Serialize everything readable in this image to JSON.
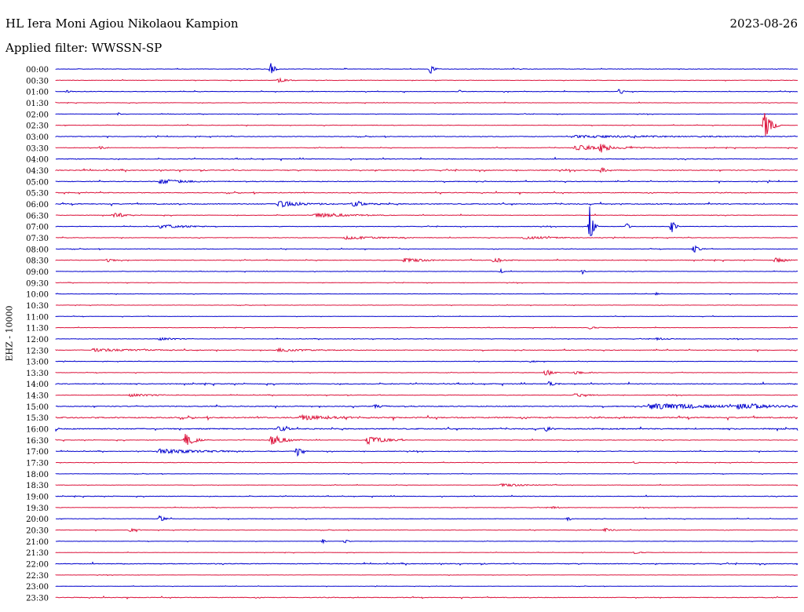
{
  "header": {
    "station": "HL Iera Moni Agiou Nikolaou Kampion",
    "date": "2023-08-26",
    "filter": "Applied filter: WWSSN-SP"
  },
  "colors": {
    "even": "#0000cd",
    "odd": "#dc143c"
  },
  "chart_data": {
    "type": "line",
    "title": "HL Iera Moni Agiou Nikolaou Kampion",
    "ylabel": "EHZ - 10000",
    "grid": false,
    "rows": [
      {
        "label": "00:00",
        "noise": 1,
        "events": [
          {
            "x": 0.29,
            "amp": 9,
            "w": 4
          },
          {
            "x": 0.505,
            "amp": 7,
            "w": 4
          }
        ]
      },
      {
        "label": "00:30",
        "noise": 1,
        "events": [
          {
            "x": 0.3,
            "amp": 3,
            "w": 10
          }
        ]
      },
      {
        "label": "01:00",
        "noise": 1,
        "events": [
          {
            "x": 0.015,
            "amp": 2,
            "w": 3
          },
          {
            "x": 0.545,
            "amp": 2,
            "w": 3
          },
          {
            "x": 0.76,
            "amp": 5,
            "w": 4
          }
        ]
      },
      {
        "label": "01:30",
        "noise": 0.8,
        "events": []
      },
      {
        "label": "02:00",
        "noise": 0.8,
        "events": [
          {
            "x": 0.085,
            "amp": 2,
            "w": 2
          }
        ]
      },
      {
        "label": "02:30",
        "noise": 1,
        "events": [
          {
            "x": 0.955,
            "amp": 20,
            "w": 8
          }
        ]
      },
      {
        "label": "03:00",
        "noise": 1.2,
        "events": [
          {
            "x": 0.7,
            "amp": 1.5,
            "w": 150
          }
        ]
      },
      {
        "label": "03:30",
        "noise": 1.2,
        "events": [
          {
            "x": 0.06,
            "amp": 2,
            "w": 8
          },
          {
            "x": 0.735,
            "amp": 8,
            "w": 6
          },
          {
            "x": 0.7,
            "amp": 3,
            "w": 60
          }
        ]
      },
      {
        "label": "04:00",
        "noise": 1.6,
        "events": []
      },
      {
        "label": "04:30",
        "noise": 1.8,
        "events": [
          {
            "x": 0.735,
            "amp": 5,
            "w": 4
          }
        ]
      },
      {
        "label": "05:00",
        "noise": 1.5,
        "events": [
          {
            "x": 0.14,
            "amp": 3,
            "w": 30
          }
        ]
      },
      {
        "label": "05:30",
        "noise": 1.6,
        "events": []
      },
      {
        "label": "06:00",
        "noise": 2,
        "events": [
          {
            "x": 0.3,
            "amp": 4,
            "w": 30
          },
          {
            "x": 0.4,
            "amp": 3,
            "w": 20
          }
        ]
      },
      {
        "label": "06:30",
        "noise": 1.2,
        "events": [
          {
            "x": 0.08,
            "amp": 4,
            "w": 10
          },
          {
            "x": 0.35,
            "amp": 3,
            "w": 40
          }
        ]
      },
      {
        "label": "07:00",
        "noise": 1,
        "events": [
          {
            "x": 0.72,
            "amp": 30,
            "w": 4
          },
          {
            "x": 0.77,
            "amp": 5,
            "w": 3
          },
          {
            "x": 0.83,
            "amp": 10,
            "w": 4
          },
          {
            "x": 0.14,
            "amp": 3,
            "w": 30
          }
        ]
      },
      {
        "label": "07:30",
        "noise": 1,
        "events": [
          {
            "x": 0.63,
            "amp": 2,
            "w": 40
          },
          {
            "x": 0.39,
            "amp": 2,
            "w": 50
          }
        ]
      },
      {
        "label": "08:00",
        "noise": 1,
        "events": [
          {
            "x": 0.86,
            "amp": 5,
            "w": 6
          }
        ]
      },
      {
        "label": "08:30",
        "noise": 1.4,
        "events": [
          {
            "x": 0.07,
            "amp": 3,
            "w": 6
          },
          {
            "x": 0.59,
            "amp": 4,
            "w": 10
          },
          {
            "x": 0.97,
            "amp": 4,
            "w": 12
          },
          {
            "x": 0.47,
            "amp": 3,
            "w": 25
          }
        ]
      },
      {
        "label": "09:00",
        "noise": 0.8,
        "events": [
          {
            "x": 0.6,
            "amp": 3,
            "w": 3
          },
          {
            "x": 0.71,
            "amp": 3,
            "w": 3
          }
        ]
      },
      {
        "label": "09:30",
        "noise": 0.8,
        "events": []
      },
      {
        "label": "10:00",
        "noise": 0.7,
        "events": [
          {
            "x": 0.81,
            "amp": 2,
            "w": 2
          }
        ]
      },
      {
        "label": "10:30",
        "noise": 0.7,
        "events": []
      },
      {
        "label": "11:00",
        "noise": 0.8,
        "events": []
      },
      {
        "label": "11:30",
        "noise": 0.8,
        "events": [
          {
            "x": 0.72,
            "amp": 2,
            "w": 8
          }
        ]
      },
      {
        "label": "12:00",
        "noise": 0.9,
        "events": [
          {
            "x": 0.81,
            "amp": 2,
            "w": 12
          },
          {
            "x": 0.14,
            "amp": 2,
            "w": 20
          }
        ]
      },
      {
        "label": "12:30",
        "noise": 1.4,
        "events": [
          {
            "x": 0.05,
            "amp": 2,
            "w": 60
          },
          {
            "x": 0.3,
            "amp": 2,
            "w": 40
          }
        ]
      },
      {
        "label": "13:00",
        "noise": 0.8,
        "events": [
          {
            "x": 0.64,
            "amp": 1.5,
            "w": 6
          }
        ]
      },
      {
        "label": "13:30",
        "noise": 0.8,
        "events": [
          {
            "x": 0.66,
            "amp": 5,
            "w": 8
          },
          {
            "x": 0.7,
            "amp": 2,
            "w": 12
          }
        ]
      },
      {
        "label": "14:00",
        "noise": 1.8,
        "events": [
          {
            "x": 0.665,
            "amp": 4,
            "w": 6
          }
        ]
      },
      {
        "label": "14:30",
        "noise": 1,
        "events": [
          {
            "x": 0.1,
            "amp": 2,
            "w": 30
          },
          {
            "x": 0.7,
            "amp": 2,
            "w": 20
          }
        ]
      },
      {
        "label": "15:00",
        "noise": 1.8,
        "events": [
          {
            "x": 0.8,
            "amp": 4,
            "w": 80
          },
          {
            "x": 0.92,
            "amp": 4,
            "w": 40
          },
          {
            "x": 0.43,
            "amp": 3,
            "w": 8
          }
        ]
      },
      {
        "label": "15:30",
        "noise": 2.6,
        "events": [
          {
            "x": 0.33,
            "amp": 3,
            "w": 40
          }
        ]
      },
      {
        "label": "16:00",
        "noise": 2.4,
        "events": [
          {
            "x": 0.66,
            "amp": 4,
            "w": 6
          },
          {
            "x": 0.3,
            "amp": 3,
            "w": 12
          },
          {
            "x": 0.0,
            "amp": 4,
            "w": 2
          }
        ]
      },
      {
        "label": "16:30",
        "noise": 1.2,
        "events": [
          {
            "x": 0.175,
            "amp": 10,
            "w": 10
          },
          {
            "x": 0.29,
            "amp": 7,
            "w": 16
          },
          {
            "x": 0.42,
            "amp": 6,
            "w": 20
          }
        ]
      },
      {
        "label": "17:00",
        "noise": 1.2,
        "events": [
          {
            "x": 0.325,
            "amp": 7,
            "w": 6
          },
          {
            "x": 0.14,
            "amp": 3,
            "w": 60
          }
        ]
      },
      {
        "label": "17:30",
        "noise": 0.9,
        "events": [
          {
            "x": 0.78,
            "amp": 2,
            "w": 4
          }
        ]
      },
      {
        "label": "18:00",
        "noise": 0.7,
        "events": []
      },
      {
        "label": "18:30",
        "noise": 1,
        "events": [
          {
            "x": 0.6,
            "amp": 2,
            "w": 30
          }
        ]
      },
      {
        "label": "19:00",
        "noise": 1.2,
        "events": []
      },
      {
        "label": "19:30",
        "noise": 0.9,
        "events": [
          {
            "x": 0.67,
            "amp": 2,
            "w": 8
          }
        ]
      },
      {
        "label": "20:00",
        "noise": 1,
        "events": [
          {
            "x": 0.14,
            "amp": 4,
            "w": 6
          },
          {
            "x": 0.69,
            "amp": 2,
            "w": 4
          }
        ]
      },
      {
        "label": "20:30",
        "noise": 0.9,
        "events": [
          {
            "x": 0.1,
            "amp": 2,
            "w": 12
          },
          {
            "x": 0.74,
            "amp": 3,
            "w": 8
          }
        ]
      },
      {
        "label": "21:00",
        "noise": 0.7,
        "events": [
          {
            "x": 0.36,
            "amp": 3,
            "w": 3
          },
          {
            "x": 0.39,
            "amp": 3,
            "w": 3
          }
        ]
      },
      {
        "label": "21:30",
        "noise": 0.7,
        "events": [
          {
            "x": 0.78,
            "amp": 1.5,
            "w": 10
          }
        ]
      },
      {
        "label": "22:00",
        "noise": 1.6,
        "events": []
      },
      {
        "label": "22:30",
        "noise": 0.6,
        "events": []
      },
      {
        "label": "23:00",
        "noise": 0.6,
        "events": []
      },
      {
        "label": "23:30",
        "noise": 1.4,
        "events": []
      }
    ]
  }
}
